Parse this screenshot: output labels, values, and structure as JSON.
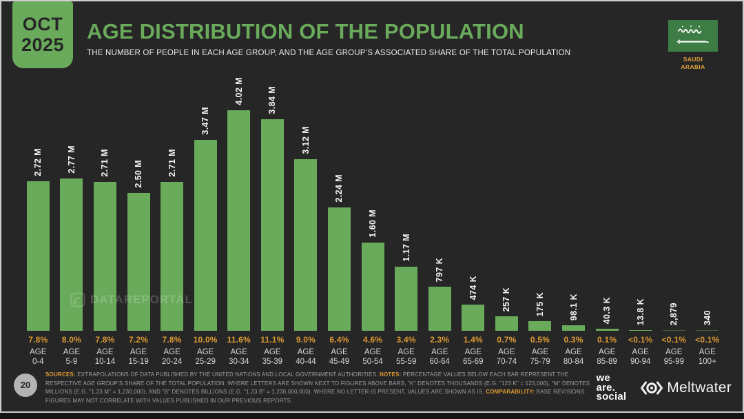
{
  "slide": {
    "date_badge": {
      "month": "OCT",
      "year": "2025"
    },
    "title": "AGE DISTRIBUTION OF THE POPULATION",
    "subtitle": "THE NUMBER OF PEOPLE IN EACH AGE GROUP, AND THE AGE GROUP’S ASSOCIATED SHARE OF THE TOTAL POPULATION",
    "country_label": {
      "line1": "SAUDI",
      "line2": "ARABIA"
    },
    "watermark_text": "DATAREPORTAL",
    "page_number": "20"
  },
  "chart_data": {
    "type": "bar",
    "title": "AGE DISTRIBUTION OF THE POPULATION",
    "xlabel": "",
    "ylabel": "",
    "grid": false,
    "legend": false,
    "ylim": [
      0,
      4020000
    ],
    "bar_color": "#6aaa5b",
    "age_prefix": "AGE",
    "categories": [
      "0-4",
      "5-9",
      "10-14",
      "15-19",
      "20-24",
      "25-29",
      "30-34",
      "35-39",
      "40-44",
      "45-49",
      "50-54",
      "55-59",
      "60-64",
      "65-69",
      "70-74",
      "75-79",
      "80-84",
      "85-89",
      "90-94",
      "95-99",
      "100+"
    ],
    "values": [
      2720000,
      2770000,
      2710000,
      2500000,
      2710000,
      3470000,
      4020000,
      3840000,
      3120000,
      2240000,
      1600000,
      1170000,
      797000,
      474000,
      257000,
      175000,
      98100,
      40300,
      13800,
      2879,
      340
    ],
    "value_labels": [
      "2.72 M",
      "2.77 M",
      "2.71 M",
      "2.50 M",
      "2.71 M",
      "3.47 M",
      "4.02 M",
      "3.84 M",
      "3.12 M",
      "2.24 M",
      "1.60 M",
      "1.17 M",
      "797 K",
      "474 K",
      "257 K",
      "175 K",
      "98.1 K",
      "40.3 K",
      "13.8 K",
      "2,879",
      "340"
    ],
    "share_labels": [
      "7.8%",
      "8.0%",
      "7.8%",
      "7.2%",
      "7.8%",
      "10.0%",
      "11.6%",
      "11.1%",
      "9.0%",
      "6.4%",
      "4.6%",
      "3.4%",
      "2.3%",
      "1.4%",
      "0.7%",
      "0.5%",
      "0.3%",
      "0.1%",
      "<0.1%",
      "<0.1%",
      "<0.1%"
    ]
  },
  "footer": {
    "sources_label": "SOURCES:",
    "sources_text": " EXTRAPOLATIONS OF DATA PUBLISHED BY THE UNITED NATIONS AND LOCAL GOVERNMENT AUTHORITIES. ",
    "notes_label": "NOTES:",
    "notes_text": " PERCENTAGE VALUES BELOW EACH BAR REPRESENT THE RESPECTIVE AGE GROUP’S SHARE OF THE TOTAL POPULATION. WHERE LETTERS ARE SHOWN NEXT TO FIGURES ABOVE BARS, \"K\" DENOTES THOUSANDS (E.G. \"123 K\" = 123,000), \"M\" DENOTES MILLIONS (E.G. \"1.23 M\" = 1,230,000), AND \"B\" DENOTES BILLIONS (E.G. \"1.23 B\" = 1,230,000,000). WHERE NO LETTER IS PRESENT, VALUES ARE SHOWN AS IS. ",
    "comparability_label": "COMPARABILITY:",
    "comparability_text": " BASE REVISIONS. FIGURES MAY NOT CORRELATE WITH VALUES PUBLISHED IN OUR PREVIOUS REPORTS.",
    "we_are_social": {
      "line1": "we",
      "line2": "are.",
      "line3": "social"
    },
    "meltwater": "Meltwater"
  },
  "colors": {
    "background": "#262626",
    "accent_green": "#6aaa5b",
    "accent_orange": "#dd9a34",
    "flag_green": "#3e7c45",
    "light_text": "#f2f2f2",
    "muted_text": "#9e9e9e",
    "border": "#cfcfcf"
  }
}
